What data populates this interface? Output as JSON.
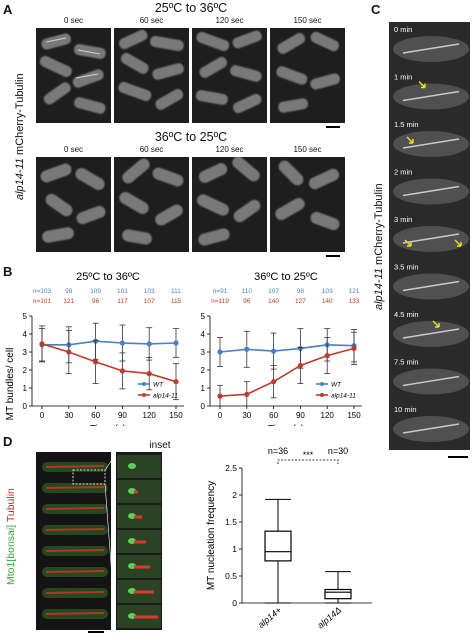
{
  "panel_labels": {
    "a": "A",
    "b": "B",
    "c": "C",
    "d": "D"
  },
  "panel_a": {
    "row1_title": "25ºC to 36ºC",
    "row2_title": "36ºC to 25ºC",
    "times": [
      "0 sec",
      "60 sec",
      "120 sec",
      "150 sec"
    ],
    "side_label_italic": "alp14-11",
    "side_label_rest": " mCherry-Tubulin"
  },
  "panel_b": {
    "ylabel": "MT bundles/ cell",
    "xlabel": "Time (s)",
    "chart_data": [
      {
        "type": "line",
        "title": "25ºC to 36ºC",
        "x": [
          0,
          30,
          60,
          90,
          120,
          150
        ],
        "ylim": [
          0,
          5
        ],
        "n_labels": {
          "wt": [
            "n=103",
            "98",
            "109",
            "101",
            "103",
            "111"
          ],
          "mut": [
            "n=101",
            "121",
            "96",
            "117",
            "107",
            "115"
          ]
        },
        "series": [
          {
            "name": "WT",
            "color": "#4a7fc1",
            "values": [
              3.4,
              3.4,
              3.6,
              3.5,
              3.45,
              3.5
            ],
            "err": [
              0.9,
              1.0,
              1.0,
              1.0,
              0.9,
              0.8
            ]
          },
          {
            "name": "alp14-11",
            "color": "#c0392b",
            "values": [
              3.45,
              3.0,
              2.45,
              1.95,
              1.8,
              1.35
            ],
            "err": [
              1.0,
              1.2,
              1.2,
              1.0,
              0.9,
              1.0
            ]
          }
        ]
      },
      {
        "type": "line",
        "title": "36ºC to 25ºC",
        "x": [
          0,
          30,
          60,
          90,
          120,
          150
        ],
        "ylim": [
          0,
          5
        ],
        "n_labels": {
          "wt": [
            "n=91",
            "110",
            "107",
            "98",
            "103",
            "121"
          ],
          "mut": [
            "n=119",
            "96",
            "140",
            "127",
            "140",
            "133"
          ]
        },
        "series": [
          {
            "name": "WT",
            "color": "#4a7fc1",
            "values": [
              3.0,
              3.15,
              3.05,
              3.2,
              3.4,
              3.35
            ],
            "err": [
              0.8,
              1.0,
              1.0,
              1.1,
              0.9,
              0.9
            ]
          },
          {
            "name": "alp14-11",
            "color": "#c0392b",
            "values": [
              0.55,
              0.65,
              1.35,
              2.25,
              2.8,
              3.2
            ],
            "err": [
              0.6,
              0.7,
              0.9,
              1.0,
              1.0,
              0.9
            ]
          }
        ]
      }
    ],
    "xticks": [
      "0",
      "30",
      "60",
      "90",
      "120",
      "150"
    ],
    "yticks": [
      "0",
      "1",
      "2",
      "3",
      "4",
      "5"
    ],
    "legend_wt": "WT",
    "legend_mut": "alp14-11"
  },
  "panel_c": {
    "side_label_italic": "alp14-11",
    "side_label_rest": " mCherry-Tubulin",
    "times": [
      "0 min",
      "1 min",
      "1.5 min",
      "2 min",
      "3 min",
      "3.5 min",
      "4.5 min",
      "7.5 min",
      "10 min"
    ]
  },
  "panel_d": {
    "inset_label": "inset",
    "side_label_green_a": "Mto1",
    "side_label_green_b": "[bonsai]",
    "side_label_red": " Tubulin",
    "chart_data": {
      "type": "box",
      "ylabel": "MT nucleation frequency",
      "ylim": [
        0,
        2.5
      ],
      "yticks": [
        "0",
        "0.5",
        "1",
        "1.5",
        "2",
        "2.5"
      ],
      "categories": [
        "alp14+",
        "alp14Δ"
      ],
      "n_labels": [
        "n=36",
        "n=30"
      ],
      "significance": "***",
      "boxes": [
        {
          "min": 0,
          "q1": 0.78,
          "median": 0.95,
          "q3": 1.33,
          "max": 1.92
        },
        {
          "min": 0,
          "q1": 0.08,
          "median": 0.2,
          "q3": 0.25,
          "max": 0.58
        }
      ]
    }
  }
}
